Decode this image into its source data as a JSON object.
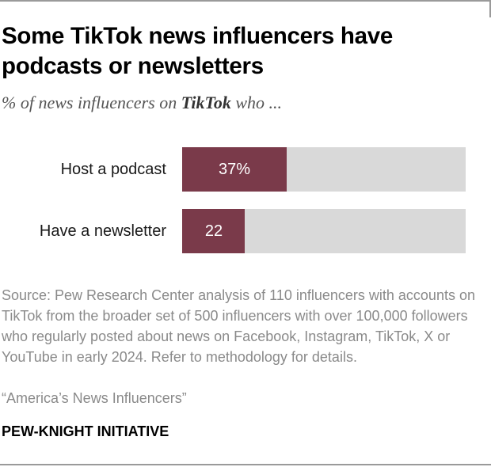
{
  "title": "Some TikTok news influencers have podcasts or newsletters",
  "subtitle_before": "% of news influencers on",
  "subtitle_emphasis": "TikTok",
  "subtitle_after": "who ...",
  "chart_data": {
    "type": "bar",
    "orientation": "horizontal",
    "categories": [
      "Host a podcast",
      "Have a newsletter"
    ],
    "values": [
      37,
      22
    ],
    "value_labels": [
      "37%",
      "22"
    ],
    "xlim": [
      0,
      100
    ],
    "colors": {
      "bar": "#7a3a4a",
      "track": "#d9d9d9"
    },
    "grid": false,
    "legend": "none"
  },
  "source": "Source: Pew Research Center analysis of 110 influencers with accounts on TikTok from the broader set of 500 influencers with over 100,000 followers who regularly posted about news on Facebook, Instagram, TikTok, X or YouTube in early 2024. Refer to methodology for details.",
  "report": "“America’s News Influencers”",
  "brand": "PEW-KNIGHT INITIATIVE"
}
